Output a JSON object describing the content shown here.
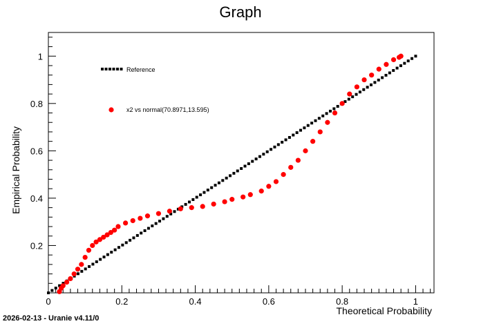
{
  "chart_data": {
    "type": "scatter",
    "title": "Graph",
    "xlabel": "Theoretical Probability",
    "ylabel": "Empirical Probability",
    "xlim": [
      0,
      1.05
    ],
    "ylim": [
      0,
      1.1
    ],
    "xticks": [
      0,
      0.2,
      0.4,
      0.6,
      0.8,
      1
    ],
    "yticks": [
      0.2,
      0.4,
      0.6,
      0.8,
      1
    ],
    "grid": false,
    "legend_position": "top-left",
    "series": [
      {
        "name": "Reference",
        "style": "dotted-line",
        "color": "#000000",
        "x_range": [
          0,
          1
        ],
        "y_range": [
          0,
          1
        ],
        "n_points": 100
      },
      {
        "name": "x2 vs normal(70.8971,13.595)",
        "style": "markers",
        "color": "#ff0000",
        "points": [
          [
            0.03,
            0.005
          ],
          [
            0.035,
            0.02
          ],
          [
            0.04,
            0.03
          ],
          [
            0.05,
            0.045
          ],
          [
            0.06,
            0.06
          ],
          [
            0.07,
            0.08
          ],
          [
            0.08,
            0.1
          ],
          [
            0.09,
            0.12
          ],
          [
            0.1,
            0.15
          ],
          [
            0.11,
            0.18
          ],
          [
            0.12,
            0.2
          ],
          [
            0.13,
            0.215
          ],
          [
            0.14,
            0.225
          ],
          [
            0.15,
            0.235
          ],
          [
            0.16,
            0.245
          ],
          [
            0.17,
            0.255
          ],
          [
            0.18,
            0.265
          ],
          [
            0.19,
            0.28
          ],
          [
            0.21,
            0.295
          ],
          [
            0.23,
            0.305
          ],
          [
            0.25,
            0.315
          ],
          [
            0.27,
            0.325
          ],
          [
            0.3,
            0.335
          ],
          [
            0.33,
            0.345
          ],
          [
            0.36,
            0.355
          ],
          [
            0.39,
            0.36
          ],
          [
            0.42,
            0.365
          ],
          [
            0.45,
            0.375
          ],
          [
            0.48,
            0.385
          ],
          [
            0.5,
            0.395
          ],
          [
            0.53,
            0.405
          ],
          [
            0.55,
            0.415
          ],
          [
            0.58,
            0.43
          ],
          [
            0.6,
            0.45
          ],
          [
            0.62,
            0.47
          ],
          [
            0.64,
            0.5
          ],
          [
            0.66,
            0.53
          ],
          [
            0.68,
            0.56
          ],
          [
            0.7,
            0.6
          ],
          [
            0.72,
            0.64
          ],
          [
            0.74,
            0.68
          ],
          [
            0.76,
            0.72
          ],
          [
            0.78,
            0.76
          ],
          [
            0.8,
            0.8
          ],
          [
            0.82,
            0.84
          ],
          [
            0.84,
            0.87
          ],
          [
            0.86,
            0.9
          ],
          [
            0.88,
            0.92
          ],
          [
            0.9,
            0.945
          ],
          [
            0.92,
            0.965
          ],
          [
            0.94,
            0.985
          ],
          [
            0.955,
            0.995
          ],
          [
            0.96,
            1.0
          ]
        ]
      }
    ]
  },
  "footer": {
    "text": "2026-02-13 - Uranie v4.11/0"
  }
}
